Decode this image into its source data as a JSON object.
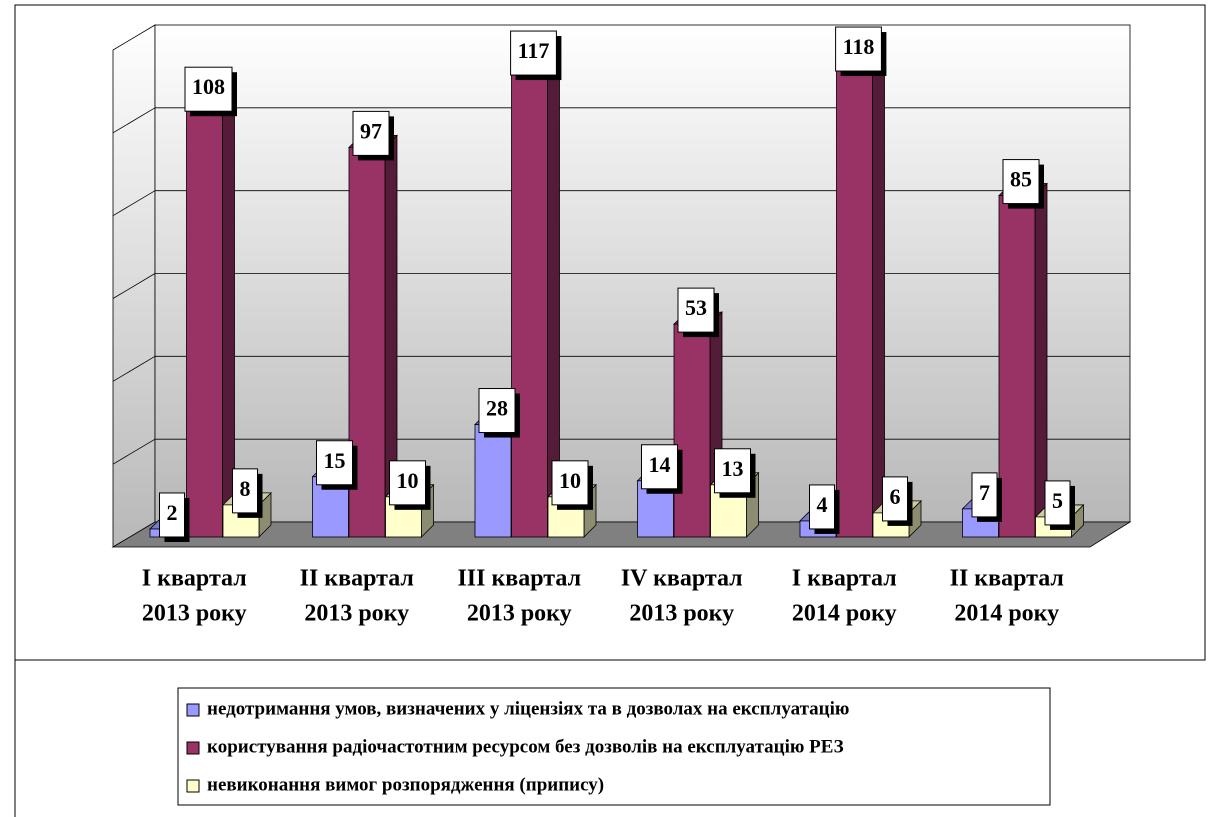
{
  "chart_data": {
    "type": "bar3d",
    "categories": [
      [
        "І квартал",
        "2013 року"
      ],
      [
        "ІІ квартал",
        "2013 року"
      ],
      [
        "ІІІ квартал",
        "2013 року"
      ],
      [
        "IV квартал",
        "2013 року"
      ],
      [
        "І квартал",
        "2014 року"
      ],
      [
        "ІІ квартал",
        "2014 року"
      ]
    ],
    "series": [
      {
        "name": "недотримання умов, визначених у ліцензіях та в дозволах на експлуатацію",
        "color": "#9999ff",
        "values": [
          2,
          15,
          28,
          14,
          4,
          7
        ]
      },
      {
        "name": "користування радіочастотним ресурсом без дозволів на експлуатацію РЕЗ",
        "color": "#993366",
        "values": [
          108,
          97,
          117,
          53,
          118,
          85
        ]
      },
      {
        "name": "невиконання вимог розпорядження (припису)",
        "color": "#ffffcc",
        "values": [
          8,
          10,
          10,
          13,
          6,
          5
        ]
      }
    ],
    "ylim": [
      0,
      120
    ],
    "grid": true,
    "legend": "bottom"
  }
}
